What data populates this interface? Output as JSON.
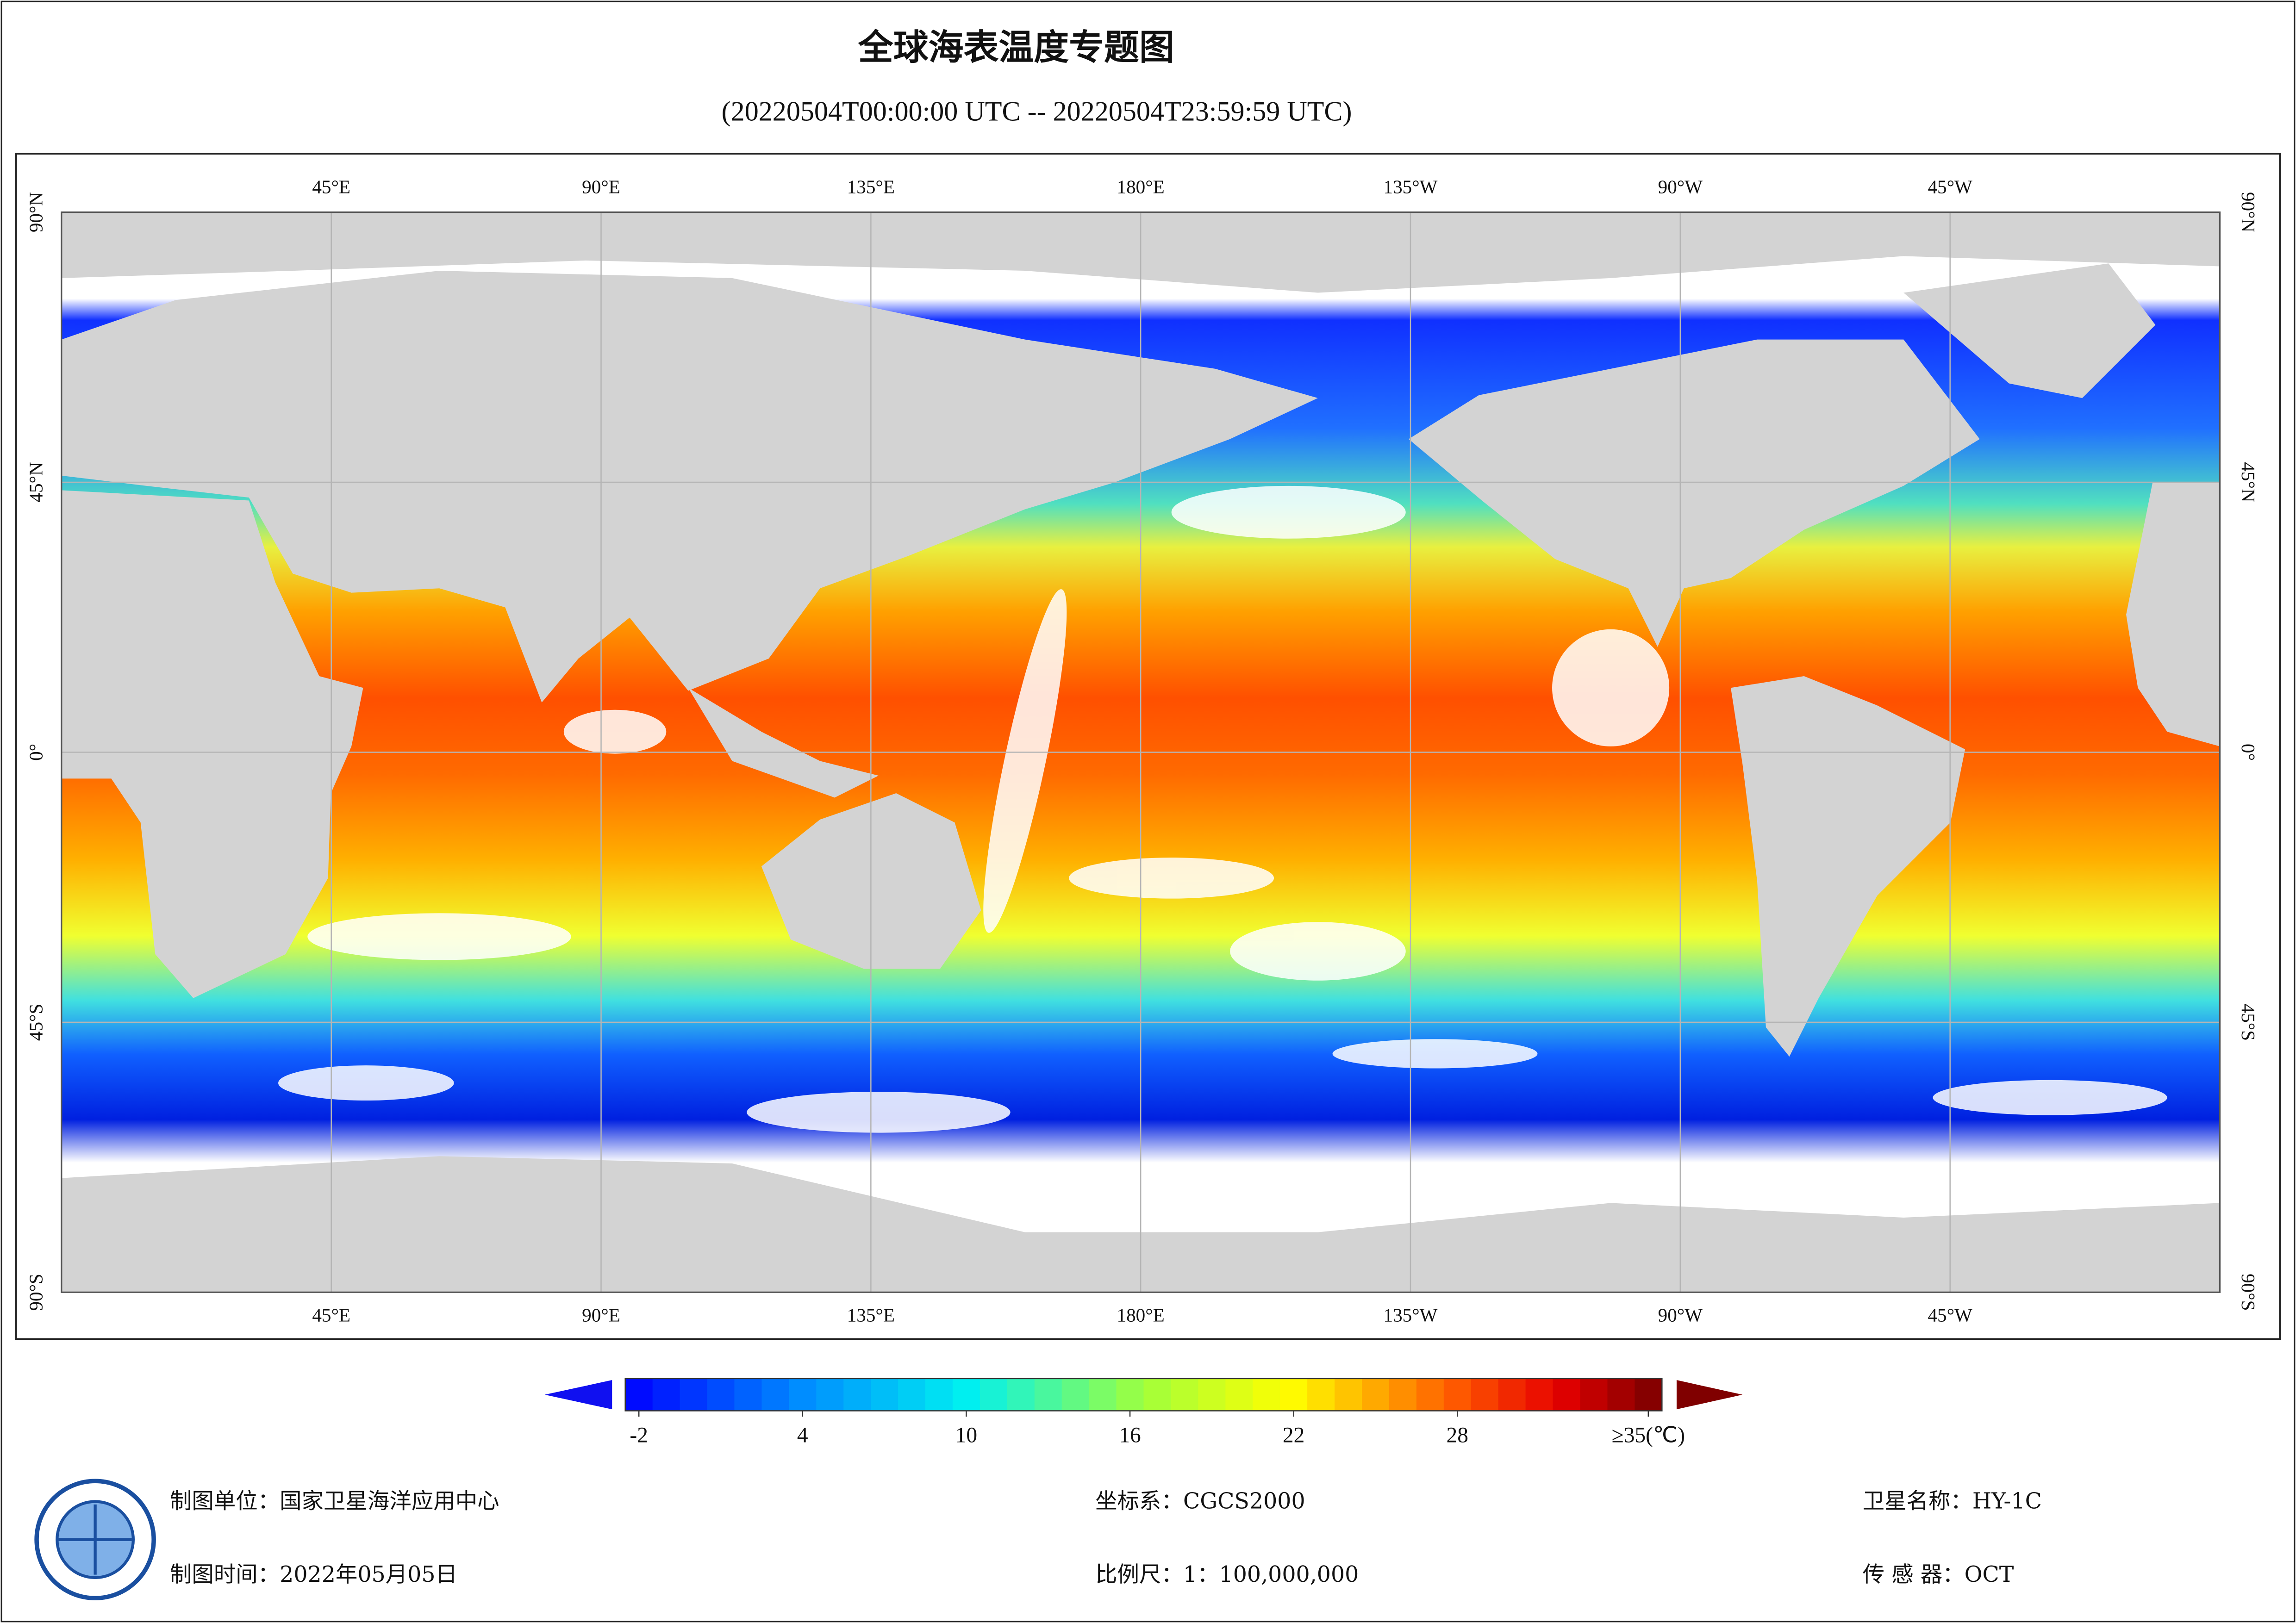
{
  "title": "全球海表温度专题图",
  "subtitle": "(20220504T00:00:00 UTC -- 20220504T23:59:59 UTC)",
  "map": {
    "lon_range": [
      0,
      360
    ],
    "lat_range": [
      -90,
      90
    ],
    "lon_ticks": [
      {
        "value": 45,
        "label": "45°E"
      },
      {
        "value": 90,
        "label": "90°E"
      },
      {
        "value": 135,
        "label": "135°E"
      },
      {
        "value": 180,
        "label": "180°E"
      },
      {
        "value": 225,
        "label": "135°W"
      },
      {
        "value": 270,
        "label": "90°W"
      },
      {
        "value": 315,
        "label": "45°W"
      }
    ],
    "lat_ticks": [
      {
        "value": 90,
        "label": "90°N"
      },
      {
        "value": 45,
        "label": "45°N"
      },
      {
        "value": 0,
        "label": "0°"
      },
      {
        "value": -45,
        "label": "45°S"
      },
      {
        "value": -90,
        "label": "90°S"
      }
    ]
  },
  "colorbar": {
    "range": [
      -2.5,
      35.5
    ],
    "ticks": [
      -2,
      4,
      10,
      16,
      22,
      28,
      {
        "value": 35,
        "label": "≥35(℃)"
      }
    ]
  },
  "footer": {
    "unit": "制图单位：国家卫星海洋应用中心",
    "time": "制图时间：2022年05月05日",
    "crs": "坐标系：CGCS2000",
    "scale": "比例尺：1：100,000,000",
    "satellite": "卫星名称：HY-1C",
    "sensor": "传 感 器：OCT"
  }
}
